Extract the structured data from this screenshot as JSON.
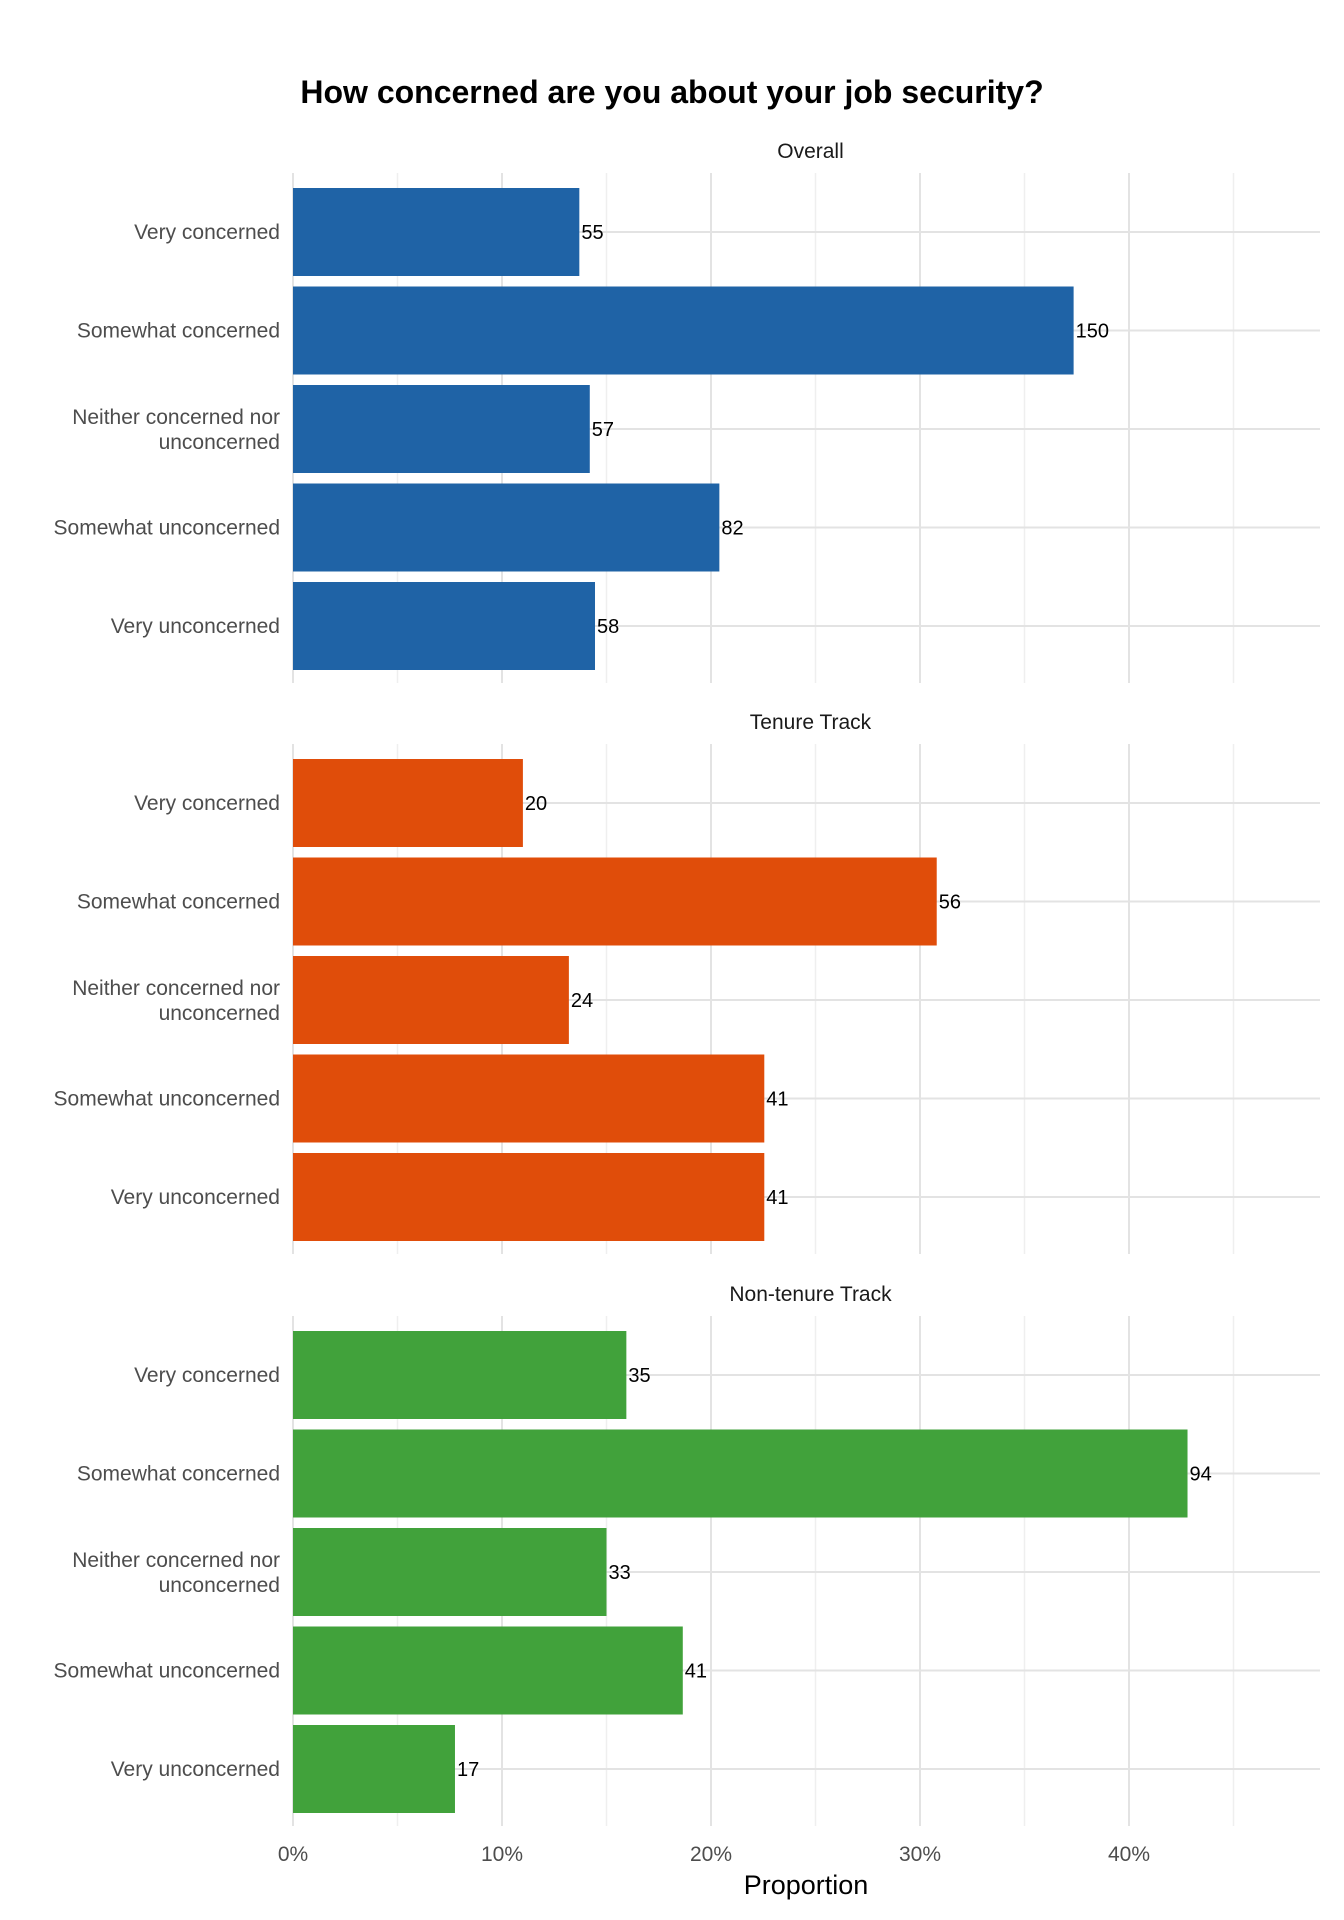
{
  "chart_data": {
    "type": "bar",
    "orientation": "horizontal",
    "title": "How concerned are you about your job security?",
    "xlabel": "Proportion",
    "ylabel": "",
    "xlim": [
      0,
      0.49
    ],
    "x_ticks": [
      0,
      0.1,
      0.2,
      0.3,
      0.4
    ],
    "x_tick_labels": [
      "0%",
      "10%",
      "20%",
      "30%",
      "40%"
    ],
    "grid": true,
    "legend": "none",
    "categories": [
      "Very concerned",
      "Somewhat concerned",
      "Neither concerned nor unconcerned",
      "Somewhat unconcerned",
      "Very unconcerned"
    ],
    "category_label_lines": [
      [
        "Very concerned"
      ],
      [
        "Somewhat concerned"
      ],
      [
        "Neither concerned nor",
        "unconcerned"
      ],
      [
        "Somewhat unconcerned"
      ],
      [
        "Very unconcerned"
      ]
    ],
    "panels": [
      {
        "name": "Overall",
        "color": "#1f63a6",
        "proportions": [
          0.137,
          0.3735,
          0.142,
          0.204,
          0.1445
        ],
        "counts": [
          55,
          150,
          57,
          82,
          58
        ]
      },
      {
        "name": "Tenure Track",
        "color": "#e04d0a",
        "proportions": [
          0.11,
          0.308,
          0.132,
          0.2255,
          0.2255
        ],
        "counts": [
          20,
          56,
          24,
          41,
          41
        ]
      },
      {
        "name": "Non-tenure Track",
        "color": "#41a23b",
        "proportions": [
          0.1595,
          0.428,
          0.15,
          0.1865,
          0.0775
        ],
        "counts": [
          35,
          94,
          33,
          41,
          17
        ]
      }
    ]
  }
}
